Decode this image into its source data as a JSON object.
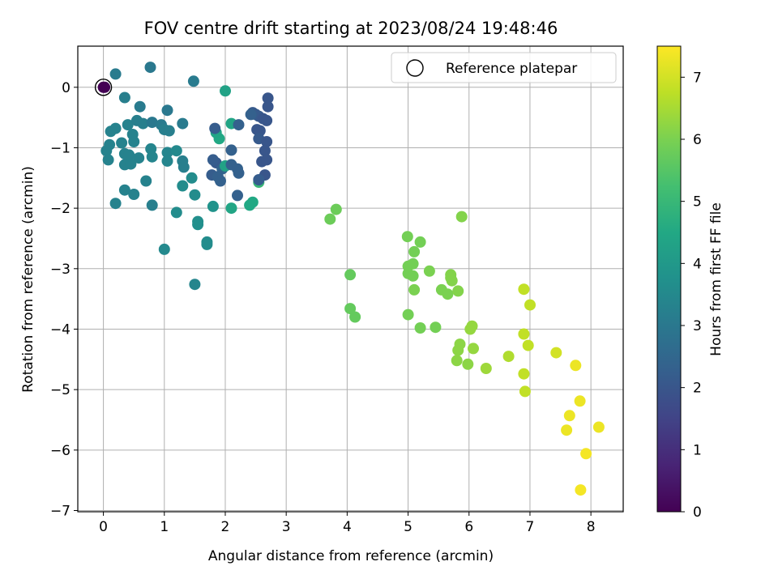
{
  "chart_data": {
    "type": "scatter",
    "title": "FOV centre drift starting at 2023/08/24 19:48:46",
    "xlabel": "Angular distance from reference (arcmin)",
    "ylabel": "Rotation from reference (arcmin)",
    "xlim": [
      -0.42,
      8.53
    ],
    "ylim": [
      -7.02,
      0.68
    ],
    "xticks": [
      "0",
      "1",
      "2",
      "3",
      "4",
      "5",
      "6",
      "7",
      "8"
    ],
    "yticks": [
      "0",
      "−1",
      "−2",
      "−3",
      "−4",
      "−5",
      "−6",
      "−7"
    ],
    "grid": true,
    "legend": {
      "placement": "top-right",
      "entries": [
        "Reference platepar"
      ]
    },
    "reference_point": {
      "x": 0.0,
      "y": 0.0,
      "hours": 0.0
    },
    "colorbar": {
      "label": "Hours from first FF file",
      "colormap": "viridis",
      "range": [
        0,
        7.5
      ],
      "ticks": [
        "0",
        "1",
        "2",
        "3",
        "4",
        "5",
        "6",
        "7"
      ]
    },
    "points": [
      [
        0.2,
        0.22,
        3.1
      ],
      [
        0.77,
        0.33,
        3.0
      ],
      [
        1.48,
        0.1,
        3.1
      ],
      [
        0.35,
        -0.17,
        3.2
      ],
      [
        0.6,
        -0.32,
        3.1
      ],
      [
        1.05,
        -0.38,
        3.0
      ],
      [
        0.12,
        -0.73,
        3.3
      ],
      [
        0.2,
        -0.68,
        3.3
      ],
      [
        0.4,
        -0.62,
        3.3
      ],
      [
        0.55,
        -0.55,
        3.2
      ],
      [
        0.65,
        -0.6,
        3.2
      ],
      [
        0.8,
        -0.58,
        3.0
      ],
      [
        0.95,
        -0.62,
        3.1
      ],
      [
        1.0,
        -0.7,
        3.2
      ],
      [
        1.08,
        -0.72,
        3.2
      ],
      [
        1.3,
        -0.6,
        3.1
      ],
      [
        0.48,
        -0.78,
        3.3
      ],
      [
        0.5,
        -0.9,
        3.3
      ],
      [
        0.3,
        -0.92,
        3.3
      ],
      [
        0.1,
        -0.95,
        3.3
      ],
      [
        0.05,
        -1.05,
        3.3
      ],
      [
        0.08,
        -1.2,
        3.3
      ],
      [
        0.35,
        -1.1,
        3.3
      ],
      [
        0.42,
        -1.12,
        3.3
      ],
      [
        0.58,
        -1.17,
        3.3
      ],
      [
        0.35,
        -1.28,
        3.3
      ],
      [
        0.45,
        -1.27,
        3.3
      ],
      [
        0.78,
        -1.02,
        3.4
      ],
      [
        0.8,
        -1.15,
        3.4
      ],
      [
        1.05,
        -1.08,
        3.4
      ],
      [
        1.05,
        -1.22,
        3.4
      ],
      [
        1.3,
        -1.22,
        3.2
      ],
      [
        1.32,
        -1.32,
        3.2
      ],
      [
        0.35,
        -1.7,
        3.3
      ],
      [
        0.5,
        -1.77,
        3.3
      ],
      [
        0.7,
        -1.55,
        3.3
      ],
      [
        0.8,
        -1.95,
        3.2
      ],
      [
        0.2,
        -1.92,
        3.3
      ],
      [
        1.2,
        -1.05,
        3.5
      ],
      [
        1.3,
        -1.63,
        3.6
      ],
      [
        1.45,
        -1.5,
        3.6
      ],
      [
        1.5,
        -1.78,
        3.6
      ],
      [
        1.2,
        -2.07,
        3.6
      ],
      [
        1.55,
        -2.22,
        3.7
      ],
      [
        1.55,
        -2.27,
        3.7
      ],
      [
        1.7,
        -2.56,
        3.6
      ],
      [
        1.7,
        -2.6,
        3.6
      ],
      [
        1.0,
        -2.68,
        3.5
      ],
      [
        1.5,
        -3.26,
        3.4
      ],
      [
        1.8,
        -1.97,
        3.8
      ],
      [
        2.0,
        -0.06,
        4.3
      ],
      [
        2.1,
        -0.6,
        4.4
      ],
      [
        1.9,
        -0.85,
        4.5
      ],
      [
        1.85,
        -0.75,
        4.4
      ],
      [
        1.85,
        -1.25,
        2.1
      ],
      [
        1.95,
        -1.35,
        2.4
      ],
      [
        2.0,
        -1.3,
        4.3
      ],
      [
        2.1,
        -2.0,
        4.4
      ],
      [
        2.4,
        -1.95,
        4.5
      ],
      [
        2.45,
        -1.9,
        4.5
      ],
      [
        2.55,
        -1.57,
        5.0
      ],
      [
        1.83,
        -0.68,
        2.2
      ],
      [
        1.8,
        -1.2,
        2.2
      ],
      [
        1.78,
        -1.45,
        2.2
      ],
      [
        1.88,
        -1.48,
        2.3
      ],
      [
        1.92,
        -1.55,
        2.3
      ],
      [
        2.1,
        -1.04,
        2.3
      ],
      [
        2.1,
        -1.28,
        2.3
      ],
      [
        2.2,
        -1.35,
        2.3
      ],
      [
        2.22,
        -1.42,
        2.3
      ],
      [
        2.2,
        -1.79,
        2.3
      ],
      [
        2.22,
        -0.62,
        2.3
      ],
      [
        2.45,
        -0.42,
        2.1
      ],
      [
        2.5,
        -0.45,
        2.1
      ],
      [
        2.55,
        -0.48,
        2.1
      ],
      [
        2.62,
        -0.52,
        2.0
      ],
      [
        2.68,
        -0.55,
        2.0
      ],
      [
        2.7,
        -0.18,
        2.0
      ],
      [
        2.7,
        -0.32,
        2.0
      ],
      [
        2.52,
        -0.7,
        2.0
      ],
      [
        2.57,
        -0.72,
        2.0
      ],
      [
        2.55,
        -0.85,
        2.1
      ],
      [
        2.68,
        -0.9,
        2.0
      ],
      [
        2.65,
        -1.05,
        2.0
      ],
      [
        2.6,
        -1.23,
        2.0
      ],
      [
        2.68,
        -1.2,
        2.0
      ],
      [
        2.65,
        -1.45,
        2.0
      ],
      [
        2.55,
        -1.53,
        2.2
      ],
      [
        2.42,
        -0.45,
        2.3
      ],
      [
        0.02,
        0.0,
        0.1
      ],
      [
        3.82,
        -2.02,
        5.8
      ],
      [
        3.72,
        -2.18,
        5.8
      ],
      [
        4.05,
        -3.1,
        5.7
      ],
      [
        4.05,
        -3.66,
        5.7
      ],
      [
        4.13,
        -3.8,
        5.7
      ],
      [
        4.99,
        -2.47,
        5.9
      ],
      [
        5.2,
        -2.56,
        5.9
      ],
      [
        5.1,
        -2.72,
        5.9
      ],
      [
        5.0,
        -2.96,
        5.9
      ],
      [
        5.08,
        -2.92,
        5.9
      ],
      [
        5.0,
        -3.08,
        5.9
      ],
      [
        5.08,
        -3.12,
        5.9
      ],
      [
        5.35,
        -3.04,
        6.0
      ],
      [
        5.1,
        -3.35,
        6.0
      ],
      [
        5.55,
        -3.35,
        6.0
      ],
      [
        5.65,
        -3.42,
        6.0
      ],
      [
        5.7,
        -3.1,
        6.1
      ],
      [
        5.7,
        -3.15,
        6.1
      ],
      [
        5.72,
        -3.2,
        6.1
      ],
      [
        5.82,
        -3.37,
        6.1
      ],
      [
        5.88,
        -2.14,
        6.1
      ],
      [
        5.0,
        -3.76,
        5.9
      ],
      [
        5.2,
        -3.98,
        5.9
      ],
      [
        5.45,
        -3.97,
        5.9
      ],
      [
        5.85,
        -4.25,
        6.2
      ],
      [
        5.82,
        -4.35,
        6.2
      ],
      [
        5.8,
        -4.52,
        6.2
      ],
      [
        5.98,
        -4.58,
        6.2
      ],
      [
        6.02,
        -4.0,
        6.3
      ],
      [
        6.05,
        -3.95,
        6.3
      ],
      [
        6.07,
        -4.32,
        6.3
      ],
      [
        6.28,
        -4.65,
        6.4
      ],
      [
        6.65,
        -4.45,
        6.6
      ],
      [
        6.9,
        -3.34,
        6.8
      ],
      [
        7.0,
        -3.6,
        6.8
      ],
      [
        6.9,
        -4.08,
        6.8
      ],
      [
        6.97,
        -4.27,
        6.8
      ],
      [
        6.9,
        -4.74,
        6.8
      ],
      [
        6.92,
        -5.03,
        6.8
      ],
      [
        7.43,
        -4.39,
        7.0
      ],
      [
        7.75,
        -4.6,
        7.3
      ],
      [
        7.82,
        -5.19,
        7.3
      ],
      [
        7.65,
        -5.43,
        7.3
      ],
      [
        7.6,
        -5.67,
        7.3
      ],
      [
        8.13,
        -5.62,
        7.3
      ],
      [
        7.92,
        -6.06,
        7.4
      ],
      [
        7.83,
        -6.66,
        7.4
      ]
    ]
  }
}
